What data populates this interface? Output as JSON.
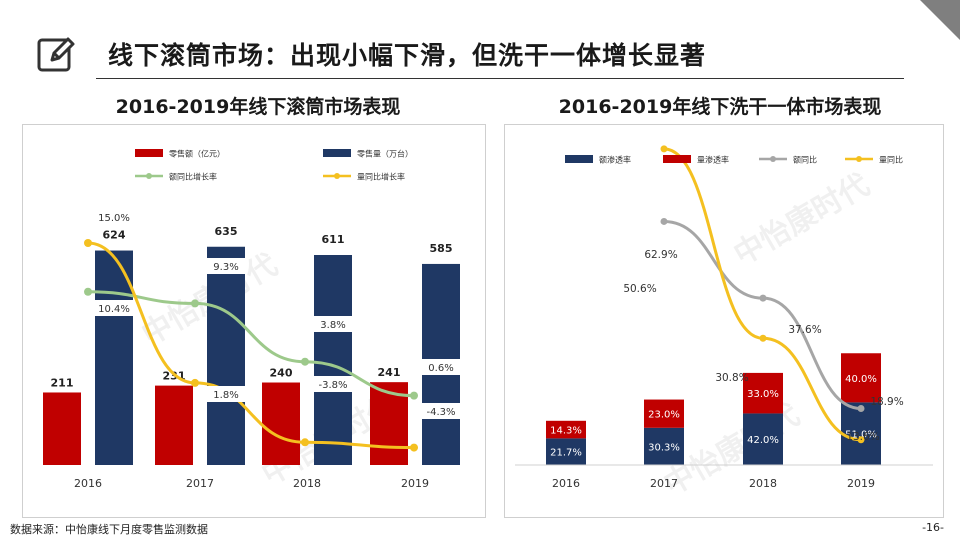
{
  "header": {
    "title": "线下滚筒市场：出现小幅下滑，但洗干一体增长显著",
    "icon": "edit-icon"
  },
  "footer": {
    "source": "数据来源：中怡康线下月度零售监测数据",
    "page": "-16-"
  },
  "watermark": "中怡康时代",
  "colors": {
    "red": "#c00000",
    "navy": "#1f3864",
    "green": "#9dc98b",
    "gold": "#f4c020",
    "gray": "#a6a6a6"
  },
  "chart_data": [
    {
      "type": "bar",
      "title": "2016-2019年线下滚筒市场表现",
      "categories": [
        "2016",
        "2017",
        "2018",
        "2019"
      ],
      "legend": [
        {
          "label": "零售额（亿元）",
          "color": "#c00000",
          "kind": "bar"
        },
        {
          "label": "零售量（万台）",
          "color": "#1f3864",
          "kind": "bar"
        },
        {
          "label": "额同比增长率",
          "color": "#9dc98b",
          "kind": "line"
        },
        {
          "label": "量同比增长率",
          "color": "#f4c020",
          "kind": "line"
        }
      ],
      "series": [
        {
          "name": "零售额（亿元）",
          "values": [
            211,
            231,
            240,
            241
          ]
        },
        {
          "name": "零售量（万台）",
          "values": [
            624,
            635,
            611,
            585
          ]
        },
        {
          "name": "额同比增长率",
          "values": [
            10.4,
            9.3,
            3.8,
            0.6
          ],
          "labels": [
            "10.4%",
            "9.3%",
            "3.8%",
            "0.6%"
          ]
        },
        {
          "name": "量同比增长率",
          "values": [
            15.0,
            1.8,
            -3.8,
            -4.3
          ],
          "labels": [
            "15.0%",
            "1.8%",
            "-3.8%",
            "-4.3%"
          ]
        }
      ]
    },
    {
      "type": "bar",
      "title": "2016-2019年线下洗干一体市场表现",
      "categories": [
        "2016",
        "2017",
        "2018",
        "2019"
      ],
      "legend": [
        {
          "label": "额渗透率",
          "color": "#1f3864",
          "kind": "bar"
        },
        {
          "label": "量渗透率",
          "color": "#c00000",
          "kind": "bar"
        },
        {
          "label": "额同比",
          "color": "#a6a6a6",
          "kind": "line"
        },
        {
          "label": "量同比",
          "color": "#f4c020",
          "kind": "line"
        }
      ],
      "series": [
        {
          "name": "额渗透率",
          "values": [
            21.7,
            30.3,
            42.0,
            51.0
          ],
          "labels": [
            "21.7%",
            "30.3%",
            "42.0%",
            "51.0%"
          ]
        },
        {
          "name": "量渗透率",
          "values": [
            14.3,
            23.0,
            33.0,
            40.0
          ],
          "labels": [
            "14.3%",
            "23.0%",
            "33.0%",
            "40.0%"
          ]
        },
        {
          "name": "额同比",
          "x": [
            "2017",
            "2018",
            "2019"
          ],
          "values": [
            50.6,
            37.6,
            18.9
          ],
          "labels": [
            "50.6%",
            "37.6%",
            "18.9%"
          ]
        },
        {
          "name": "量同比",
          "x": [
            "2017",
            "2018",
            "2019"
          ],
          "values": [
            62.9,
            30.8,
            13.6
          ],
          "labels": [
            "62.9%",
            "30.8%",
            "13.6%"
          ]
        }
      ]
    }
  ]
}
